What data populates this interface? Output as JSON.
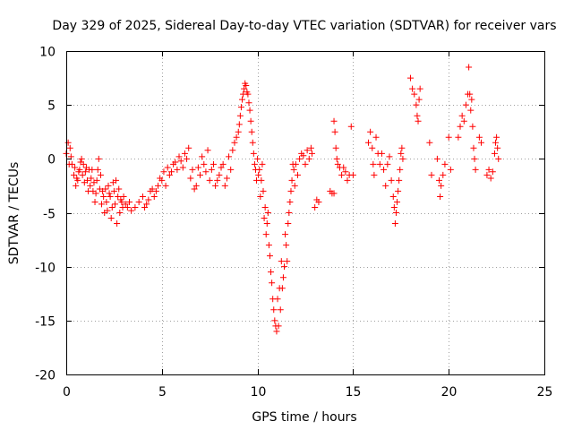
{
  "chart_data": {
    "type": "scatter",
    "title": "Day 329 of 2025, Sidereal Day-to-day VTEC variation (SDTVAR) for receiver vars",
    "xlabel": "GPS time / hours",
    "ylabel": "SDTVAR / TECUs",
    "xlim": [
      0,
      25
    ],
    "ylim": [
      -20,
      10
    ],
    "xticks": [
      0,
      5,
      10,
      15,
      20,
      25
    ],
    "yticks": [
      -20,
      -15,
      -10,
      -5,
      0,
      5,
      10
    ],
    "xtick_labels": [
      "0",
      "5",
      "10",
      "15",
      "20",
      "25"
    ],
    "ytick_labels": [
      "-20",
      "-15",
      "-10",
      "-5",
      "0",
      "5",
      "10"
    ],
    "grid": true,
    "marker": "+",
    "color": "#ff0000",
    "series": [
      {
        "name": "SDTVAR",
        "trace": [
          [
            0.0,
            0.5
          ],
          [
            0.1,
            1.5
          ],
          [
            0.2,
            1.0
          ],
          [
            0.3,
            -0.5
          ],
          [
            0.4,
            -1.5
          ],
          [
            0.5,
            -2.5
          ],
          [
            0.6,
            -2.0
          ],
          [
            0.7,
            -1.0
          ],
          [
            0.8,
            0.0
          ],
          [
            0.9,
            -0.5
          ],
          [
            1.0,
            -1.2
          ],
          [
            1.1,
            -2.0
          ],
          [
            1.2,
            -1.0
          ],
          [
            1.3,
            -1.8
          ],
          [
            1.4,
            -3.0
          ],
          [
            1.5,
            -4.0
          ],
          [
            1.6,
            -2.0
          ],
          [
            1.7,
            0.0
          ],
          [
            1.8,
            -1.5
          ],
          [
            1.9,
            -3.0
          ],
          [
            2.0,
            -5.0
          ],
          [
            2.1,
            -4.0
          ],
          [
            2.2,
            -2.5
          ],
          [
            2.3,
            -3.5
          ],
          [
            2.4,
            -4.5
          ],
          [
            2.5,
            -3.0
          ],
          [
            2.6,
            -2.0
          ],
          [
            2.7,
            -3.5
          ],
          [
            2.8,
            -5.0
          ],
          [
            2.9,
            -4.0
          ],
          [
            3.0,
            -3.5
          ],
          [
            3.2,
            -4.5
          ],
          [
            3.4,
            -4.8
          ],
          [
            3.6,
            -4.5
          ],
          [
            3.8,
            -4.0
          ],
          [
            4.0,
            -3.5
          ],
          [
            4.2,
            -4.2
          ],
          [
            4.4,
            -3.0
          ],
          [
            4.6,
            -3.5
          ],
          [
            4.8,
            -2.5
          ],
          [
            5.0,
            -2.0
          ],
          [
            5.2,
            -2.5
          ],
          [
            5.4,
            -1.5
          ],
          [
            5.6,
            -0.5
          ],
          [
            5.8,
            -1.0
          ],
          [
            6.0,
            -0.2
          ],
          [
            6.2,
            0.5
          ],
          [
            6.4,
            1.0
          ],
          [
            6.6,
            -1.0
          ],
          [
            6.8,
            -2.5
          ],
          [
            7.0,
            -1.5
          ],
          [
            7.2,
            -0.5
          ],
          [
            7.4,
            0.8
          ],
          [
            7.6,
            -1.0
          ],
          [
            7.8,
            -2.5
          ],
          [
            8.0,
            -1.5
          ],
          [
            8.2,
            -0.5
          ],
          [
            8.4,
            -1.8
          ],
          [
            8.6,
            -1.0
          ],
          [
            8.8,
            1.5
          ],
          [
            9.0,
            2.5
          ],
          [
            9.1,
            4.0
          ],
          [
            9.2,
            5.5
          ],
          [
            9.3,
            6.5
          ],
          [
            9.4,
            6.8
          ],
          [
            9.5,
            6.0
          ],
          [
            9.6,
            4.5
          ],
          [
            9.7,
            2.5
          ],
          [
            9.8,
            0.5
          ],
          [
            9.9,
            -1.0
          ],
          [
            10.0,
            0.0
          ],
          [
            10.1,
            -1.0
          ],
          [
            10.2,
            -2.0
          ],
          [
            10.3,
            -3.0
          ],
          [
            10.4,
            -4.5
          ],
          [
            10.5,
            -6.0
          ],
          [
            10.6,
            -8.0
          ],
          [
            10.7,
            -10.5
          ],
          [
            10.8,
            -13.0
          ],
          [
            10.9,
            -15.0
          ],
          [
            11.0,
            -16.0
          ],
          [
            11.1,
            -15.5
          ],
          [
            11.2,
            -14.0
          ],
          [
            11.3,
            -12.0
          ],
          [
            11.4,
            -10.0
          ],
          [
            11.5,
            -8.0
          ],
          [
            11.6,
            -6.0
          ],
          [
            11.7,
            -4.0
          ],
          [
            11.8,
            -2.0
          ],
          [
            11.9,
            -1.0
          ],
          [
            12.0,
            -0.5
          ],
          [
            12.2,
            0.0
          ],
          [
            12.4,
            0.3
          ],
          [
            12.6,
            0.8
          ],
          [
            12.8,
            1.0
          ]
        ],
        "cloud": [
          [
            0.15,
            -0.5
          ],
          [
            0.25,
            0.2
          ],
          [
            0.45,
            -0.8
          ],
          [
            0.55,
            -1.8
          ],
          [
            0.65,
            -1.2
          ],
          [
            0.75,
            -0.3
          ],
          [
            0.85,
            -1.5
          ],
          [
            0.95,
            -2.2
          ],
          [
            1.05,
            -0.8
          ],
          [
            1.15,
            -3.0
          ],
          [
            1.25,
            -2.5
          ],
          [
            1.35,
            -1.0
          ],
          [
            1.45,
            -2.2
          ],
          [
            1.55,
            -3.2
          ],
          [
            1.65,
            -1.0
          ],
          [
            1.75,
            -2.8
          ],
          [
            1.85,
            -4.2
          ],
          [
            1.95,
            -3.5
          ],
          [
            2.05,
            -2.8
          ],
          [
            2.15,
            -4.8
          ],
          [
            2.25,
            -3.2
          ],
          [
            2.35,
            -5.5
          ],
          [
            2.45,
            -2.2
          ],
          [
            2.55,
            -4.2
          ],
          [
            2.65,
            -6.0
          ],
          [
            2.75,
            -2.8
          ],
          [
            2.85,
            -3.8
          ],
          [
            2.95,
            -4.5
          ],
          [
            3.1,
            -4.2
          ],
          [
            3.3,
            -4.0
          ],
          [
            4.1,
            -4.5
          ],
          [
            4.3,
            -3.8
          ],
          [
            4.5,
            -2.8
          ],
          [
            4.7,
            -3.0
          ],
          [
            4.9,
            -1.8
          ],
          [
            5.1,
            -1.2
          ],
          [
            5.3,
            -0.8
          ],
          [
            5.5,
            -1.2
          ],
          [
            5.7,
            -0.3
          ],
          [
            5.9,
            0.2
          ],
          [
            6.1,
            -0.8
          ],
          [
            6.3,
            0.0
          ],
          [
            6.5,
            -1.8
          ],
          [
            6.7,
            -2.8
          ],
          [
            6.9,
            -0.8
          ],
          [
            7.1,
            0.2
          ],
          [
            7.3,
            -1.2
          ],
          [
            7.5,
            -2.0
          ],
          [
            7.7,
            -0.5
          ],
          [
            7.9,
            -2.0
          ],
          [
            8.1,
            -0.8
          ],
          [
            8.3,
            -2.5
          ],
          [
            8.5,
            0.2
          ],
          [
            8.7,
            0.8
          ],
          [
            8.9,
            2.0
          ],
          [
            9.05,
            3.2
          ],
          [
            9.15,
            4.8
          ],
          [
            9.25,
            6.0
          ],
          [
            9.35,
            7.0
          ],
          [
            9.45,
            6.2
          ],
          [
            9.55,
            5.2
          ],
          [
            9.65,
            3.5
          ],
          [
            9.75,
            1.5
          ],
          [
            9.85,
            -0.5
          ],
          [
            9.95,
            -2.0
          ],
          [
            10.05,
            -1.5
          ],
          [
            10.15,
            -3.5
          ],
          [
            10.25,
            -0.5
          ],
          [
            10.35,
            -5.5
          ],
          [
            10.45,
            -7.0
          ],
          [
            10.55,
            -5.0
          ],
          [
            10.65,
            -9.0
          ],
          [
            10.75,
            -11.5
          ],
          [
            10.85,
            -14.0
          ],
          [
            10.95,
            -15.5
          ],
          [
            11.05,
            -13.0
          ],
          [
            11.15,
            -12.0
          ],
          [
            11.25,
            -9.5
          ],
          [
            11.35,
            -11.0
          ],
          [
            11.45,
            -7.0
          ],
          [
            11.55,
            -9.5
          ],
          [
            11.65,
            -5.0
          ],
          [
            11.75,
            -3.0
          ],
          [
            11.85,
            -0.5
          ],
          [
            11.95,
            -2.5
          ],
          [
            12.1,
            -1.5
          ],
          [
            12.3,
            0.5
          ],
          [
            12.5,
            -0.5
          ],
          [
            12.7,
            0.0
          ],
          [
            12.85,
            0.5
          ],
          [
            13.0,
            -4.5
          ],
          [
            13.1,
            -3.8
          ],
          [
            13.2,
            -4.0
          ],
          [
            13.8,
            -3.0
          ],
          [
            13.9,
            -3.2
          ],
          [
            14.0,
            -3.2
          ],
          [
            14.0,
            3.5
          ],
          [
            14.05,
            2.5
          ],
          [
            14.1,
            1.0
          ],
          [
            14.15,
            0.0
          ],
          [
            14.2,
            -0.5
          ],
          [
            14.3,
            -0.8
          ],
          [
            14.4,
            -1.5
          ],
          [
            14.5,
            -0.8
          ],
          [
            14.6,
            -1.2
          ],
          [
            14.7,
            -2.0
          ],
          [
            14.8,
            -1.5
          ],
          [
            14.9,
            3.0
          ],
          [
            15.0,
            -1.5
          ],
          [
            15.8,
            1.5
          ],
          [
            15.9,
            2.5
          ],
          [
            16.0,
            1.0
          ],
          [
            16.05,
            -0.5
          ],
          [
            16.1,
            -1.5
          ],
          [
            16.2,
            2.0
          ],
          [
            16.3,
            0.5
          ],
          [
            16.4,
            -0.5
          ],
          [
            16.5,
            0.5
          ],
          [
            16.6,
            -1.0
          ],
          [
            16.7,
            -2.5
          ],
          [
            16.8,
            -0.5
          ],
          [
            16.9,
            0.2
          ],
          [
            17.0,
            -2.0
          ],
          [
            17.1,
            -3.5
          ],
          [
            17.15,
            -4.5
          ],
          [
            17.2,
            -6.0
          ],
          [
            17.25,
            -5.0
          ],
          [
            17.3,
            -4.0
          ],
          [
            17.35,
            -3.0
          ],
          [
            17.4,
            -2.0
          ],
          [
            17.45,
            -1.0
          ],
          [
            17.5,
            0.5
          ],
          [
            17.55,
            1.0
          ],
          [
            17.6,
            0.0
          ],
          [
            18.0,
            7.5
          ],
          [
            18.1,
            6.5
          ],
          [
            18.2,
            6.0
          ],
          [
            18.3,
            5.0
          ],
          [
            18.35,
            4.0
          ],
          [
            18.4,
            3.5
          ],
          [
            18.45,
            5.5
          ],
          [
            18.5,
            6.5
          ],
          [
            19.0,
            1.5
          ],
          [
            19.1,
            -1.5
          ],
          [
            19.4,
            0.0
          ],
          [
            19.5,
            -2.0
          ],
          [
            19.55,
            -3.5
          ],
          [
            19.6,
            -2.5
          ],
          [
            19.7,
            -1.5
          ],
          [
            19.8,
            -0.5
          ],
          [
            20.0,
            2.0
          ],
          [
            20.1,
            -1.0
          ],
          [
            20.5,
            2.0
          ],
          [
            20.6,
            3.0
          ],
          [
            20.7,
            4.0
          ],
          [
            20.8,
            3.5
          ],
          [
            20.9,
            5.0
          ],
          [
            21.0,
            6.0
          ],
          [
            21.05,
            8.5
          ],
          [
            21.1,
            6.0
          ],
          [
            21.15,
            4.5
          ],
          [
            21.2,
            5.5
          ],
          [
            21.25,
            3.0
          ],
          [
            21.3,
            1.0
          ],
          [
            21.35,
            0.0
          ],
          [
            21.4,
            -1.0
          ],
          [
            21.6,
            2.0
          ],
          [
            21.7,
            1.5
          ],
          [
            22.0,
            -1.5
          ],
          [
            22.1,
            -1.0
          ],
          [
            22.2,
            -1.8
          ],
          [
            22.3,
            -1.2
          ],
          [
            22.4,
            0.5
          ],
          [
            22.45,
            1.5
          ],
          [
            22.5,
            2.0
          ],
          [
            22.55,
            1.0
          ],
          [
            22.6,
            0.0
          ]
        ]
      }
    ]
  }
}
